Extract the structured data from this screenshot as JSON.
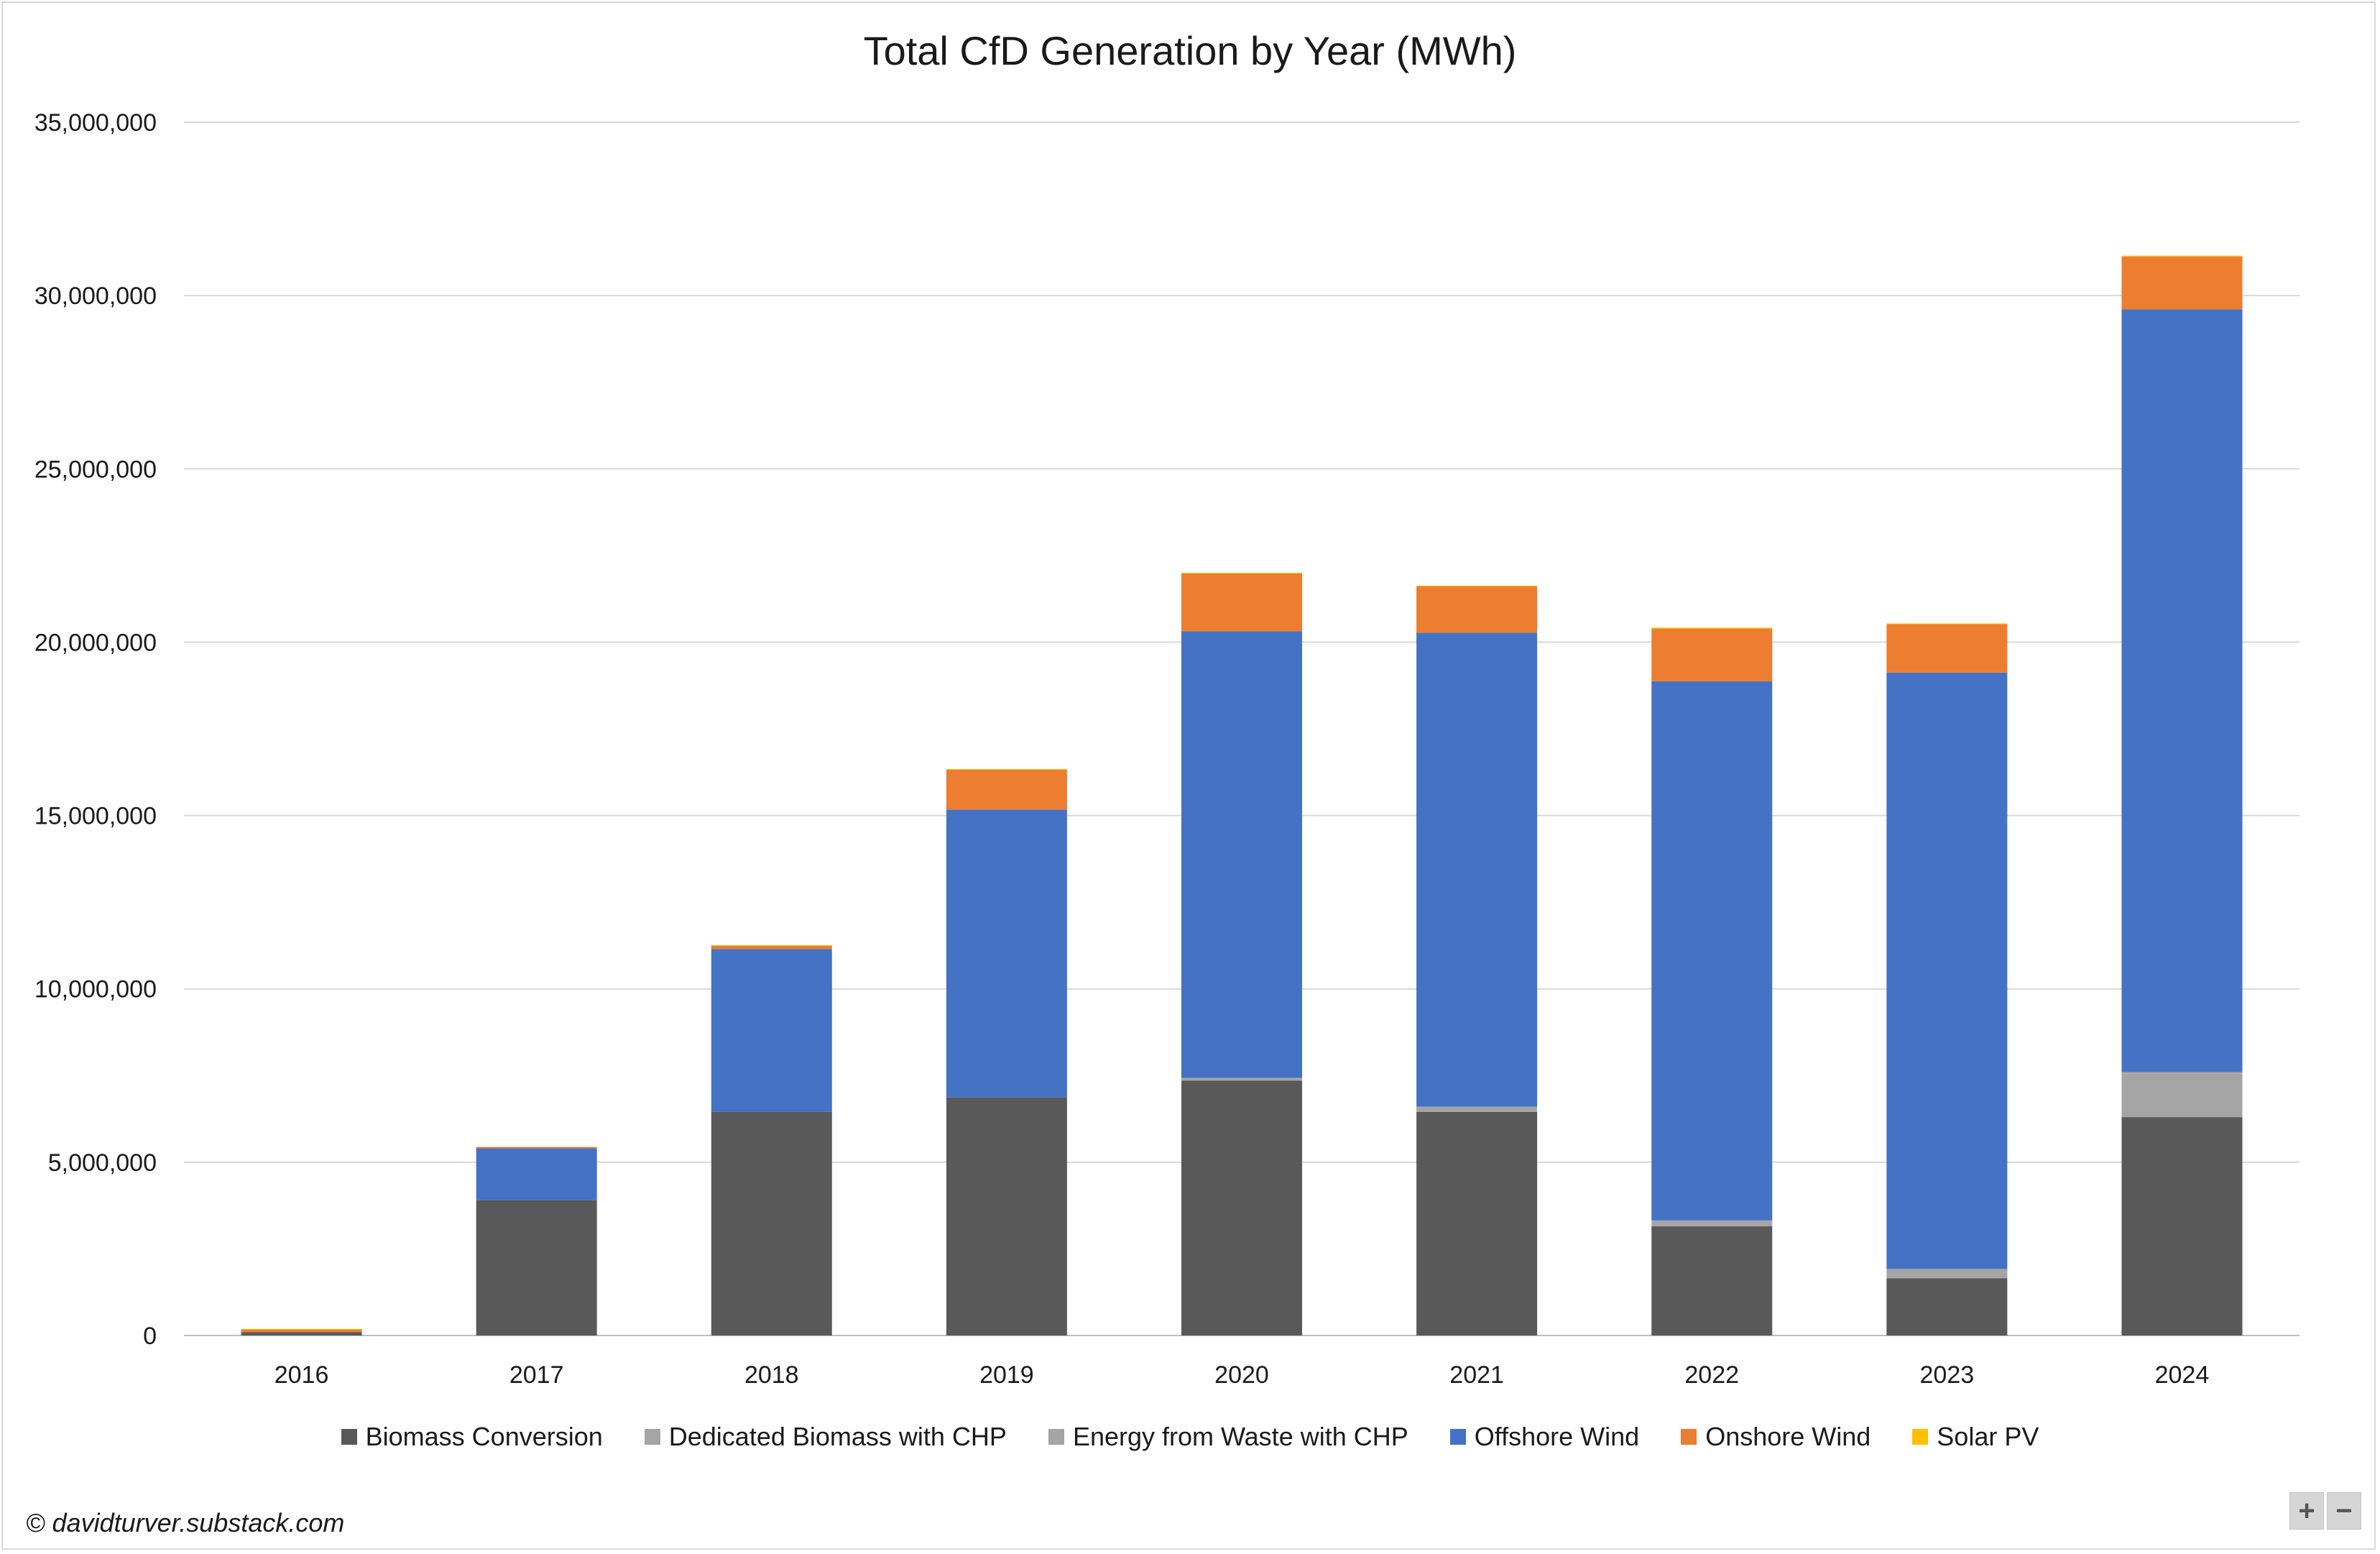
{
  "chart_data": {
    "type": "bar",
    "stacked": true,
    "title": "Total CfD Generation by Year (MWh)",
    "xlabel": "",
    "ylabel": "",
    "categories": [
      "2016",
      "2017",
      "2018",
      "2019",
      "2020",
      "2021",
      "2022",
      "2023",
      "2024"
    ],
    "ylim": [
      0,
      35000000
    ],
    "yticks": [
      0,
      5000000,
      10000000,
      15000000,
      20000000,
      25000000,
      30000000,
      35000000
    ],
    "ytick_labels": [
      "0",
      "5,000,000",
      "10,000,000",
      "15,000,000",
      "20,000,000",
      "25,000,000",
      "30,000,000",
      "35,000,000"
    ],
    "grid": true,
    "legend_position": "bottom",
    "series": [
      {
        "name": "Biomass Conversion",
        "color": "#595959",
        "values": [
          100000,
          3900000,
          6450000,
          6870000,
          7350000,
          6450000,
          3150000,
          1650000,
          6300000
        ]
      },
      {
        "name": "Dedicated Biomass with CHP",
        "color": "#a5a5a5",
        "values": [
          0,
          0,
          0,
          0,
          0,
          0,
          0,
          0,
          1250000
        ]
      },
      {
        "name": "Energy from Waste with CHP",
        "color": "#a5a5a5",
        "values": [
          0,
          0,
          0,
          0,
          80000,
          150000,
          170000,
          270000,
          50000
        ]
      },
      {
        "name": "Offshore Wind",
        "color": "#4472c4",
        "values": [
          0,
          1500000,
          4700000,
          8300000,
          12880000,
          13670000,
          15550000,
          17200000,
          22000000
        ]
      },
      {
        "name": "Onshore Wind",
        "color": "#ed7d31",
        "values": [
          80000,
          40000,
          100000,
          1150000,
          1680000,
          1350000,
          1520000,
          1400000,
          1520000
        ]
      },
      {
        "name": "Solar PV",
        "color": "#ffc000",
        "values": [
          10000,
          0,
          10000,
          20000,
          10000,
          10000,
          30000,
          20000,
          30000
        ]
      }
    ]
  },
  "legend": {
    "items": [
      {
        "label": "Biomass Conversion",
        "color": "#595959"
      },
      {
        "label": "Dedicated Biomass with CHP",
        "color": "#a5a5a5"
      },
      {
        "label": "Energy from Waste with CHP",
        "color": "#a5a5a5"
      },
      {
        "label": "Offshore Wind",
        "color": "#4472c4"
      },
      {
        "label": "Onshore Wind",
        "color": "#ed7d31"
      },
      {
        "label": "Solar PV",
        "color": "#ffc000"
      }
    ]
  },
  "credit": "© davidturver.substack.com",
  "zoom": {
    "plus": "+",
    "minus": "−"
  }
}
